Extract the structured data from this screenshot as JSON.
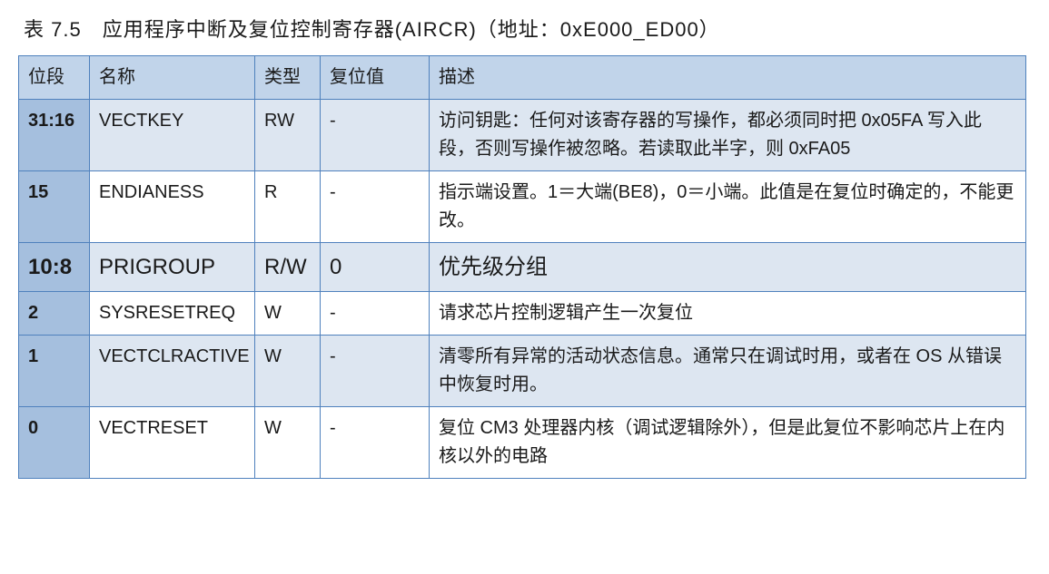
{
  "title": "表 7.5　应用程序中断及复位控制寄存器(AIRCR)（地址：0xE000_ED00）",
  "columns": [
    "位段",
    "名称",
    "类型",
    "复位值",
    "描述"
  ],
  "rows": [
    {
      "bit": "31:16",
      "name": "VECTKEY",
      "type": "RW",
      "reset": "-",
      "desc": "访问钥匙：任何对该寄存器的写操作，都必须同时把 0x05FA 写入此段，否则写操作被忽略。若读取此半字，则 0xFA05",
      "alt": true,
      "emph": false
    },
    {
      "bit": "15",
      "name": "ENDIANESS",
      "type": "R",
      "reset": "-",
      "desc": "指示端设置。1＝大端(BE8)，0＝小端。此值是在复位时确定的，不能更改。",
      "alt": false,
      "emph": false
    },
    {
      "bit": "10:8",
      "name": "PRIGROUP",
      "type": "R/W",
      "reset": "0",
      "desc": "优先级分组",
      "alt": true,
      "emph": true
    },
    {
      "bit": "2",
      "name": "SYSRESETREQ",
      "type": "W",
      "reset": "-",
      "desc": "请求芯片控制逻辑产生一次复位",
      "alt": false,
      "emph": false
    },
    {
      "bit": "1",
      "name": "VECTCLRACTIVE",
      "type": "W",
      "reset": "-",
      "desc": "清零所有异常的活动状态信息。通常只在调试时用，或者在 OS 从错误中恢复时用。",
      "alt": true,
      "emph": false
    },
    {
      "bit": "0",
      "name": "VECTRESET",
      "type": "W",
      "reset": "-",
      "desc": "复位 CM3 处理器内核（调试逻辑除外），但是此复位不影响芯片上在内核以外的电路",
      "alt": false,
      "emph": false
    }
  ],
  "colors": {
    "border": "#4f81bd",
    "header_bg": "#c1d4ea",
    "bitcol_bg": "#a5bfde",
    "alt_row_bg": "#dde6f1"
  }
}
